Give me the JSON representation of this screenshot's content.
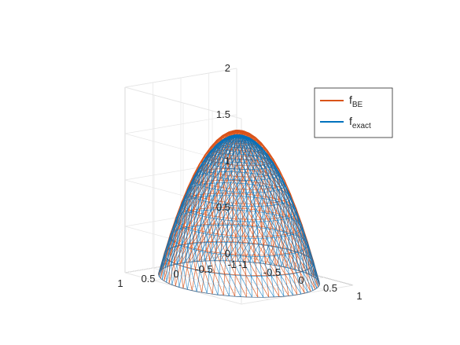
{
  "chart_data": {
    "type": "surface-wireframe",
    "title": "",
    "xlabel": "",
    "ylabel": "",
    "zlabel": "",
    "xlim": [
      -1,
      1
    ],
    "ylim": [
      -1,
      1
    ],
    "zlim": [
      0,
      2
    ],
    "x_ticks": [
      "-1",
      "-0.5",
      "0",
      "0.5",
      "1"
    ],
    "y_ticks": [
      "-1",
      "-0.5",
      "0",
      "0.5",
      "1"
    ],
    "z_ticks": [
      "0",
      "0.5",
      "1",
      "1.5",
      "2"
    ],
    "grid": true,
    "domain": "unit disk",
    "legend_position": "top-right",
    "series": [
      {
        "name_main": "f",
        "name_sub": "BE",
        "color": "#D95319",
        "peak": 1.6
      },
      {
        "name_main": "f",
        "name_sub": "exact",
        "color": "#0072BD",
        "peak": 1.55
      }
    ]
  }
}
